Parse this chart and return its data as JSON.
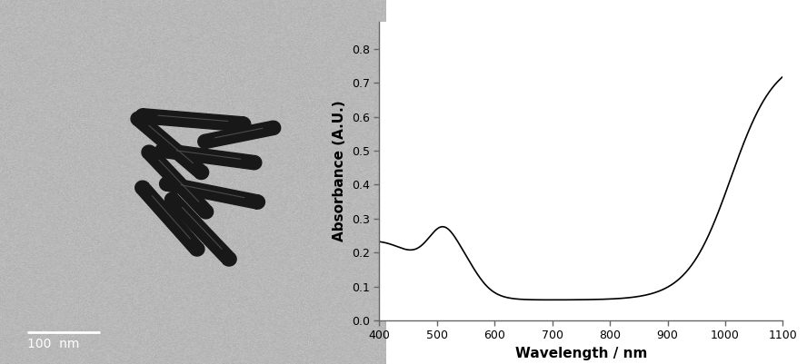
{
  "xlabel": "Wavelength / nm",
  "ylabel": "Absorbance (A.U.)",
  "xlim": [
    400,
    1100
  ],
  "ylim": [
    0.0,
    0.88
  ],
  "xticks": [
    400,
    500,
    600,
    700,
    800,
    900,
    1000,
    1100
  ],
  "yticks": [
    0.0,
    0.1,
    0.2,
    0.3,
    0.4,
    0.5,
    0.6,
    0.7,
    0.8
  ],
  "line_color": "#000000",
  "line_width": 1.2,
  "bg_color": "#ffffff",
  "tem_bg_gray": 0.72,
  "scalebar_text": "100  nm",
  "rod_params": [
    [
      0.5,
      0.67,
      0.26,
      0.04,
      -5
    ],
    [
      0.62,
      0.63,
      0.18,
      0.038,
      12
    ],
    [
      0.44,
      0.6,
      0.22,
      0.038,
      -42
    ],
    [
      0.54,
      0.57,
      0.24,
      0.038,
      -8
    ],
    [
      0.46,
      0.5,
      0.22,
      0.038,
      -48
    ],
    [
      0.55,
      0.47,
      0.24,
      0.038,
      -12
    ],
    [
      0.44,
      0.4,
      0.22,
      0.038,
      -50
    ],
    [
      0.52,
      0.37,
      0.22,
      0.038,
      -48
    ]
  ]
}
